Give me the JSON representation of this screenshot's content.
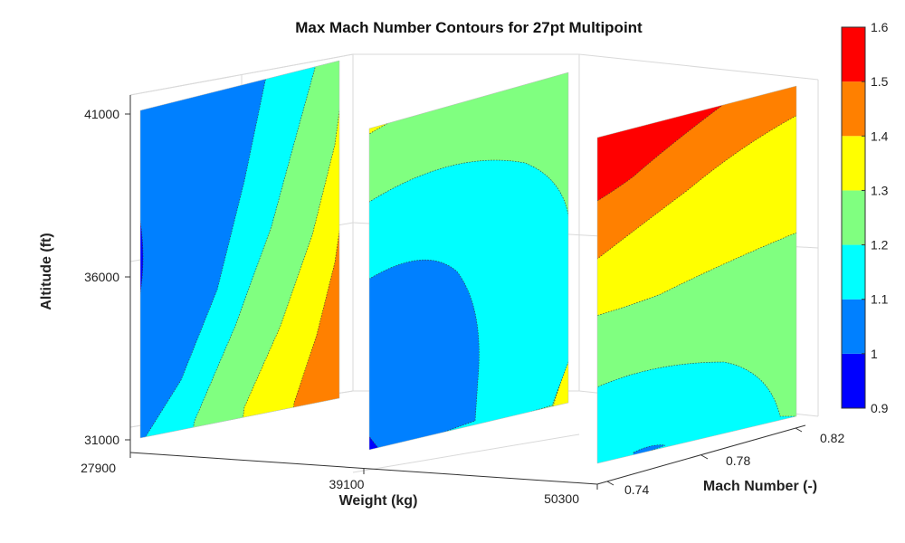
{
  "chart_data": {
    "type": "contour3d",
    "title": "Max Mach Number Contours for 27pt Multipoint",
    "xlabel": "Weight (kg)",
    "ylabel": "Mach Number (-)",
    "zlabel": "Altitude (ft)",
    "x_ticks": [
      "27900",
      "39100",
      "50300"
    ],
    "y_ticks": [
      "0.74",
      "0.78",
      "0.82"
    ],
    "z_ticks": [
      "31000",
      "36000",
      "41000"
    ],
    "xlim": [
      27900,
      50300
    ],
    "ylim": [
      0.74,
      0.82
    ],
    "zlim": [
      31000,
      41000
    ],
    "colorbar": {
      "ticks": [
        "0.9",
        "1",
        "1.1",
        "1.2",
        "1.3",
        "1.4",
        "1.5",
        "1.6"
      ],
      "levels": [
        {
          "range": [
            0.9,
            1.0
          ],
          "color": "#0000ff"
        },
        {
          "range": [
            1.0,
            1.1
          ],
          "color": "#0080ff"
        },
        {
          "range": [
            1.1,
            1.2
          ],
          "color": "#00ffff"
        },
        {
          "range": [
            1.2,
            1.3
          ],
          "color": "#80ff80"
        },
        {
          "range": [
            1.3,
            1.4
          ],
          "color": "#ffff00"
        },
        {
          "range": [
            1.4,
            1.5
          ],
          "color": "#ff8000"
        },
        {
          "range": [
            1.5,
            1.6
          ],
          "color": "#ff0000"
        }
      ]
    },
    "slices": [
      {
        "weight": 27900,
        "regions_max_mach_low_to_high": [
          0.9,
          1.0,
          1.1,
          1.2,
          1.3,
          1.4
        ]
      },
      {
        "weight": 39100,
        "regions_max_mach_low_to_high": [
          0.9,
          1.0,
          1.1,
          1.2,
          1.3
        ]
      },
      {
        "weight": 50300,
        "regions_max_mach_low_to_high": [
          1.0,
          1.1,
          1.2,
          1.3,
          1.4,
          1.5
        ]
      }
    ],
    "grid": true
  }
}
